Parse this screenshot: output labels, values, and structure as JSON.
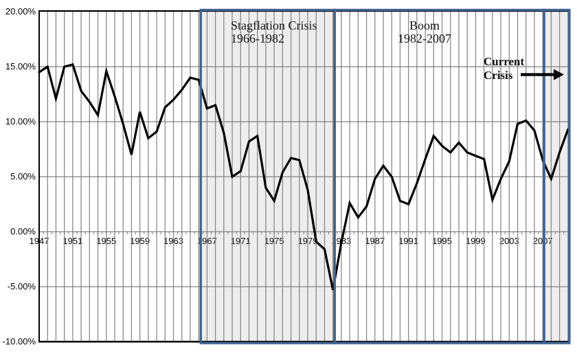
{
  "chart_data": {
    "type": "line",
    "title": "",
    "x": [
      1947,
      1948,
      1949,
      1950,
      1951,
      1952,
      1953,
      1954,
      1955,
      1956,
      1957,
      1958,
      1959,
      1960,
      1961,
      1962,
      1963,
      1964,
      1965,
      1966,
      1967,
      1968,
      1969,
      1970,
      1971,
      1972,
      1973,
      1974,
      1975,
      1976,
      1977,
      1978,
      1979,
      1980,
      1981,
      1982,
      1983,
      1984,
      1985,
      1986,
      1987,
      1988,
      1989,
      1990,
      1991,
      1992,
      1993,
      1994,
      1995,
      1996,
      1997,
      1998,
      1999,
      2000,
      2001,
      2002,
      2003,
      2004,
      2005,
      2006,
      2007,
      2008,
      2009,
      2010
    ],
    "values": [
      14.5,
      15.0,
      12.1,
      15.0,
      15.2,
      12.8,
      11.8,
      10.6,
      14.6,
      12.3,
      9.8,
      7.0,
      10.9,
      8.5,
      9.1,
      11.3,
      12.0,
      12.9,
      14.0,
      13.8,
      11.2,
      11.5,
      9.0,
      5.0,
      5.5,
      8.2,
      8.7,
      4.0,
      2.8,
      5.4,
      6.7,
      6.5,
      3.8,
      -0.9,
      -1.6,
      -5.3,
      -1.0,
      2.6,
      1.3,
      2.3,
      4.8,
      6.0,
      5.0,
      2.8,
      2.5,
      4.4,
      6.6,
      8.7,
      7.8,
      7.2,
      8.1,
      7.2,
      6.9,
      6.6,
      2.9,
      4.8,
      6.4,
      9.8,
      10.1,
      9.2,
      6.5,
      4.8,
      7.2,
      9.3
    ],
    "ylim": [
      -10,
      20
    ],
    "yticks": [
      {
        "value": 20,
        "label": "20.00%"
      },
      {
        "value": 15,
        "label": "15.00%"
      },
      {
        "value": 10,
        "label": "10.00%"
      },
      {
        "value": 5,
        "label": "5.00%"
      },
      {
        "value": 0,
        "label": "0.00%"
      },
      {
        "value": -5,
        "label": "-5.00%"
      },
      {
        "value": -10,
        "label": "-10.00%"
      }
    ],
    "xticks": [
      {
        "value": 1947,
        "label": "1947"
      },
      {
        "value": 1951,
        "label": "1951"
      },
      {
        "value": 1955,
        "label": "1955"
      },
      {
        "value": 1959,
        "label": "1959"
      },
      {
        "value": 1963,
        "label": "1963"
      },
      {
        "value": 1967,
        "label": "1967"
      },
      {
        "value": 1971,
        "label": "1971"
      },
      {
        "value": 1975,
        "label": "1975"
      },
      {
        "value": 1979,
        "label": "1979"
      },
      {
        "value": 1983,
        "label": "1983"
      },
      {
        "value": 1987,
        "label": "1987"
      },
      {
        "value": 1991,
        "label": "1991"
      },
      {
        "value": 1995,
        "label": "1995"
      },
      {
        "value": 1999,
        "label": "1999"
      },
      {
        "value": 2003,
        "label": "2003"
      },
      {
        "value": 2007,
        "label": "2007"
      }
    ],
    "grid": {
      "vertical_interval_years": 1,
      "horizontal_interval_pct": 5
    },
    "legend": "none",
    "line_color": "#000000",
    "grid_color": "#8a8a8a",
    "axis_color": "#000000",
    "region_border_color": "#3f6391",
    "region_shade_color": "rgba(125,125,125,0.14)",
    "regions": [
      {
        "id": "stagflation",
        "label": "Stagflation Crisis",
        "sublabel": "1966-1982",
        "start_year": 1966.25,
        "end_year": 1982.2,
        "shaded": true
      },
      {
        "id": "boom",
        "label": "Boom",
        "sublabel": "1982-2007",
        "start_year": 1982.2,
        "end_year": 2007.15,
        "shaded": false
      },
      {
        "id": "current-crisis",
        "label": "Current Crisis",
        "start_year": 2007.15,
        "end_year": 2010.4,
        "shaded": true
      }
    ]
  },
  "annotations": {
    "stagflation": {
      "line1": "Stagflation Crisis",
      "line2": "1966-1982"
    },
    "boom": {
      "line1": "Boom",
      "line2": "1982-2007"
    },
    "current_crisis": {
      "line1": "Current",
      "line2": "Crisis"
    }
  }
}
